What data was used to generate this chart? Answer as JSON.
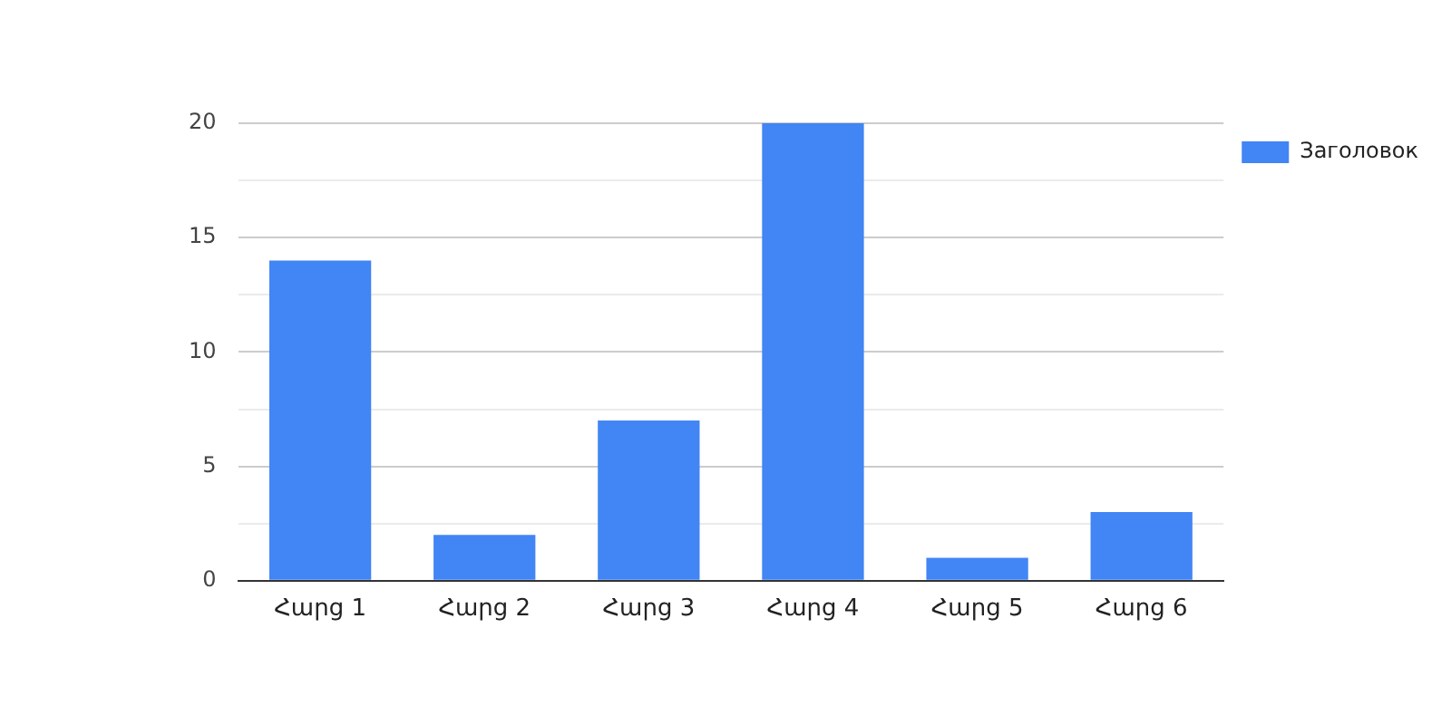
{
  "chart_data": {
    "type": "bar",
    "categories": [
      "Հարց 1",
      "Հարց 2",
      "Հարց 3",
      "Հարց 4",
      "Հարց 5",
      "Հարց 6"
    ],
    "series": [
      {
        "name": "Заголовок",
        "color": "#4285f4",
        "values": [
          14,
          2,
          7,
          20,
          1,
          3
        ]
      }
    ],
    "ylim": [
      0,
      20
    ],
    "yticks": [
      0,
      {
        "value": 2.5,
        "label": null
      },
      5,
      {
        "value": 7.5,
        "label": null
      },
      10,
      {
        "value": 12.5,
        "label": null
      },
      15,
      {
        "value": 17.5,
        "label": null
      },
      20
    ],
    "grid": "y",
    "legend": "top right"
  }
}
